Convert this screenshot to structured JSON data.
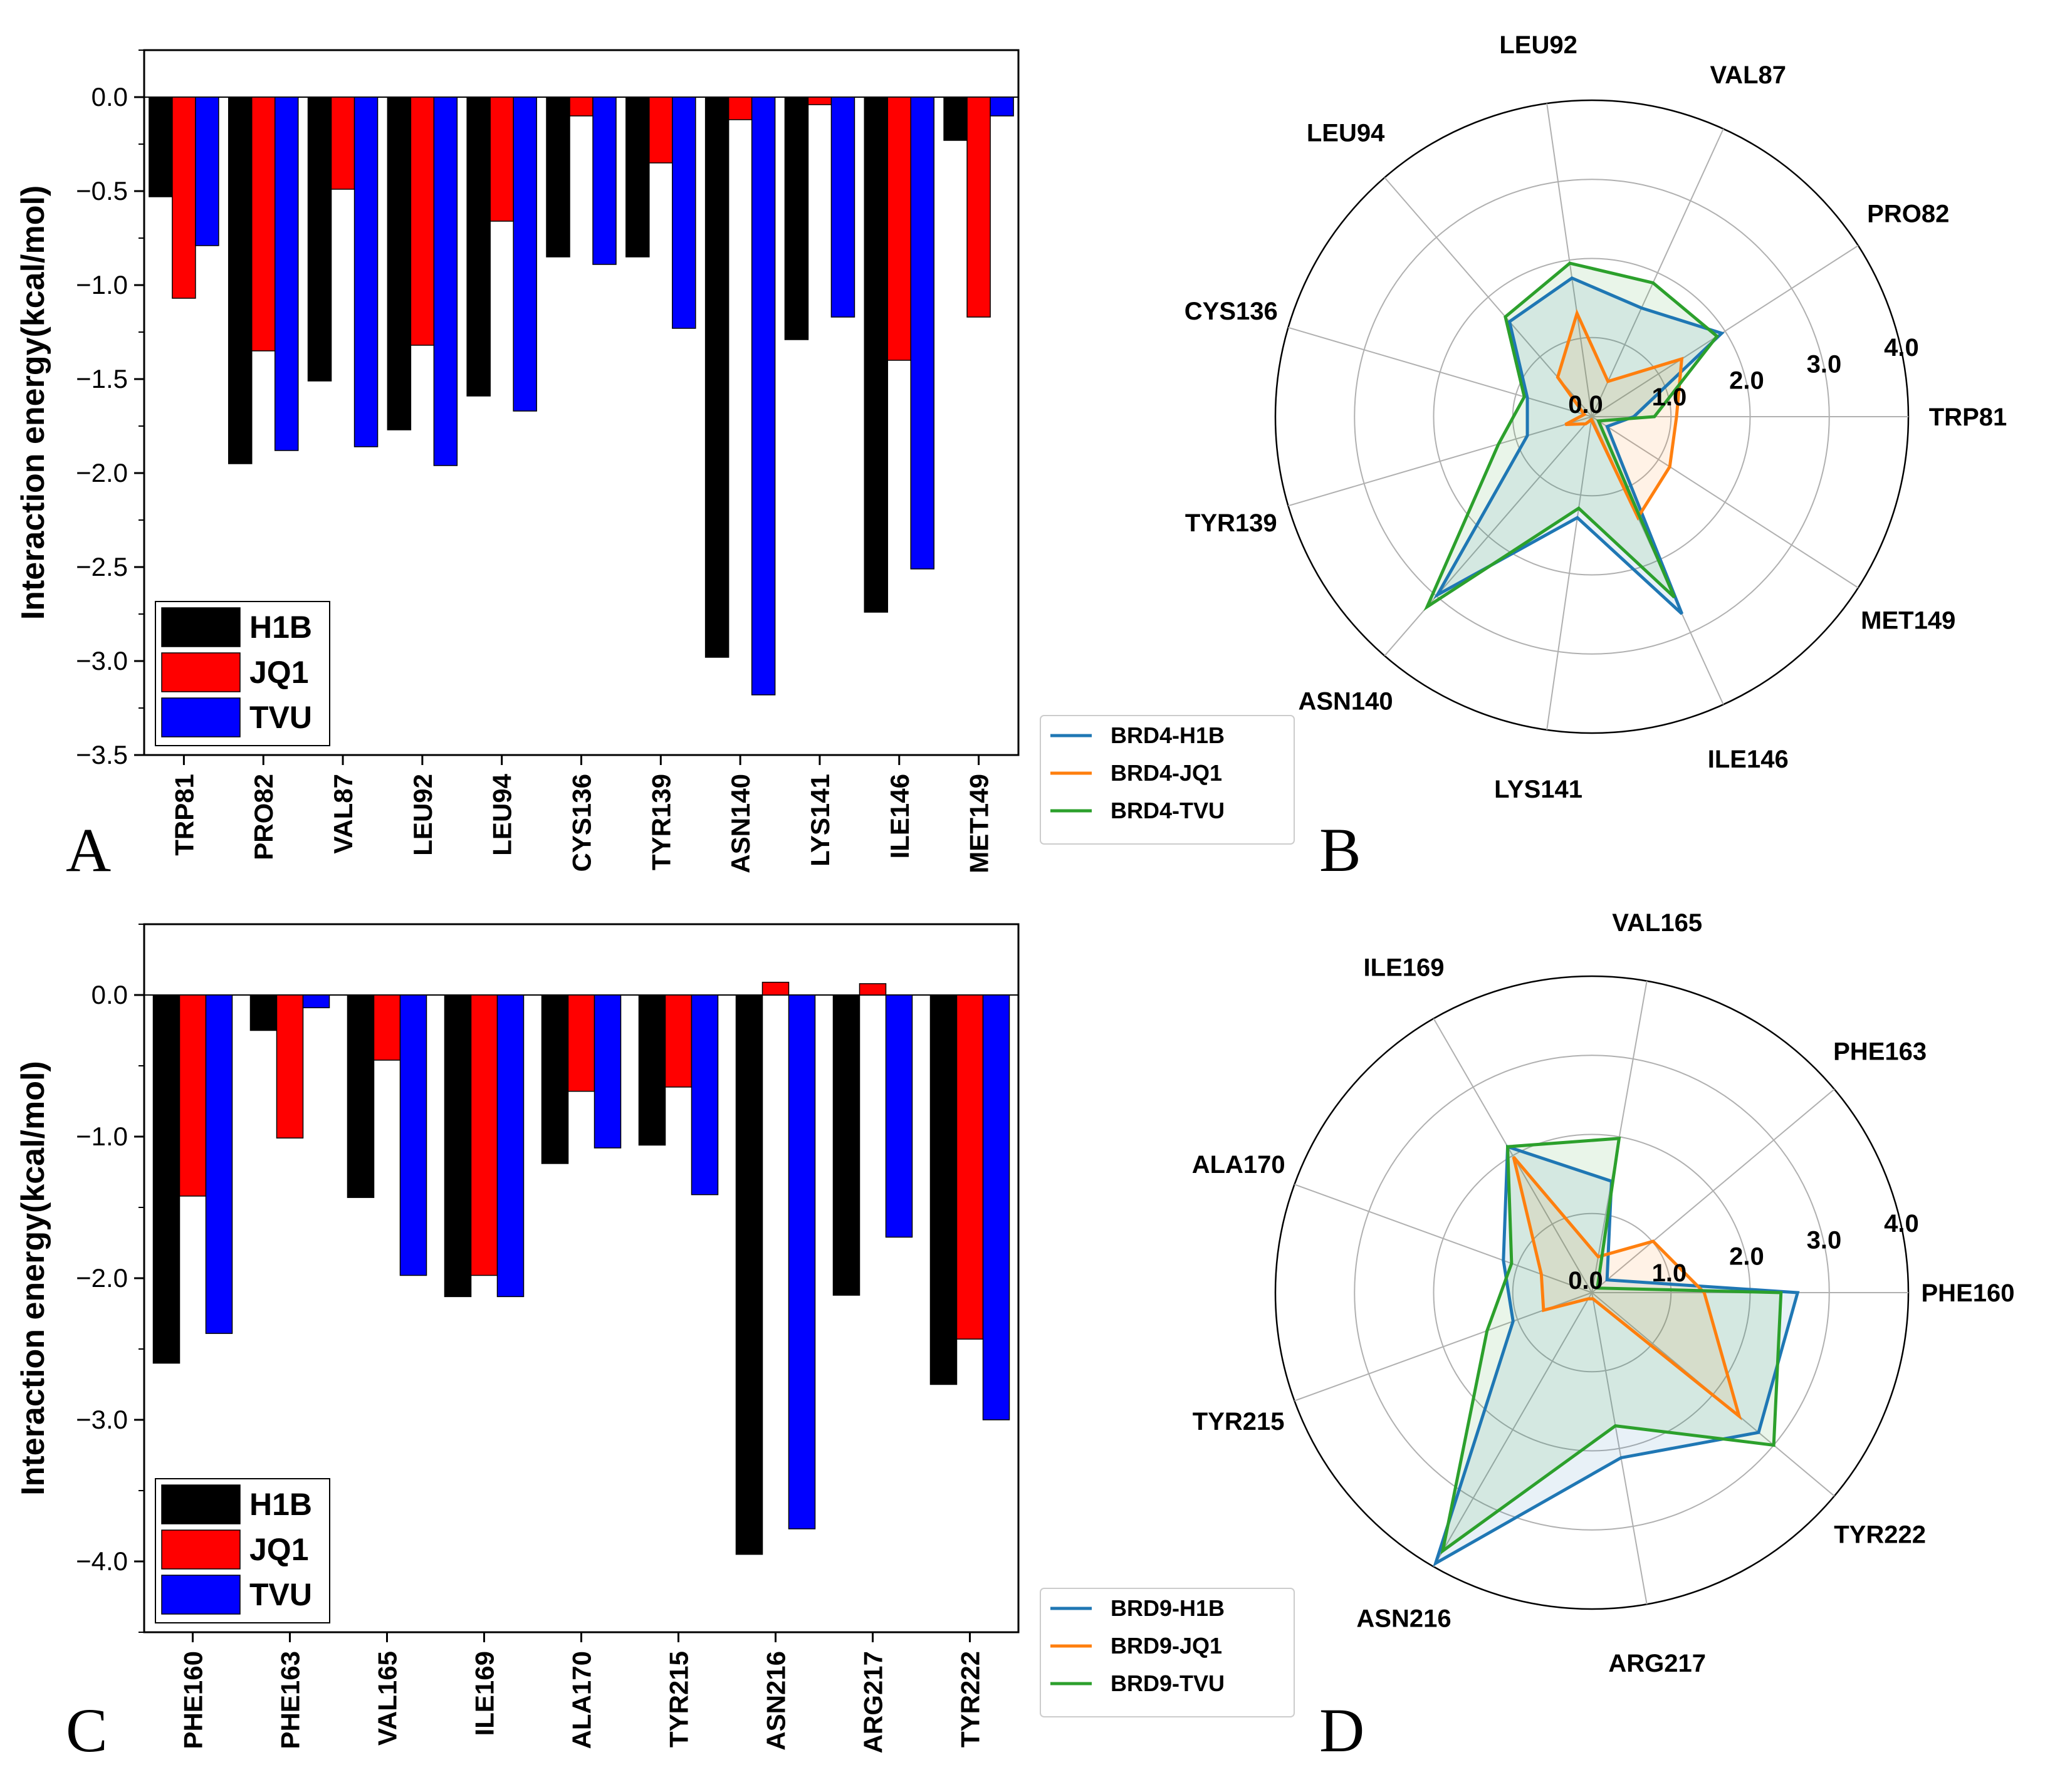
{
  "chart_data": [
    {
      "panel": "A",
      "type": "bar",
      "ylabel": "Interaction energy(kcal/mol)",
      "ylim": [
        -3.5,
        0.25
      ],
      "yticks": [
        "0.0",
        "−0.5",
        "−1.0",
        "−1.5",
        "−2.0",
        "−2.5",
        "−3.0",
        "−3.5"
      ],
      "categories": [
        "TRP81",
        "PRO82",
        "VAL87",
        "LEU92",
        "LEU94",
        "CYS136",
        "TYR139",
        "ASN140",
        "LYS141",
        "ILE146",
        "MET149"
      ],
      "series": [
        {
          "name": "H1B",
          "color": "#000000",
          "values": [
            -0.53,
            -1.95,
            -1.51,
            -1.77,
            -1.59,
            -0.85,
            -0.85,
            -2.98,
            -1.29,
            -2.74,
            -0.23
          ]
        },
        {
          "name": "JQ1",
          "color": "#ff0000",
          "values": [
            -1.07,
            -1.35,
            -0.49,
            -1.32,
            -0.66,
            -0.1,
            -0.35,
            -0.12,
            -0.04,
            -1.4,
            -1.17
          ]
        },
        {
          "name": "TVU",
          "color": "#0000ff",
          "values": [
            -0.79,
            -1.88,
            -1.86,
            -1.96,
            -1.67,
            -0.89,
            -1.23,
            -3.18,
            -1.17,
            -2.51,
            -0.1
          ]
        }
      ],
      "legend": "bottom-left",
      "grid": false
    },
    {
      "panel": "B",
      "type": "radar",
      "rlim": [
        0,
        4
      ],
      "rticks": [
        "0.0",
        "1.0",
        "2.0",
        "3.0",
        "4.0"
      ],
      "categories": [
        "TRP81",
        "PRO82",
        "VAL87",
        "LEU92",
        "LEU94",
        "CYS136",
        "TYR139",
        "ASN140",
        "LYS141",
        "ILE146",
        "MET149"
      ],
      "series": [
        {
          "name": "BRD4-H1B",
          "color": "#1f77b4",
          "values": [
            0.53,
            1.95,
            1.51,
            1.77,
            1.59,
            0.85,
            0.85,
            2.98,
            1.29,
            2.74,
            0.23
          ]
        },
        {
          "name": "BRD4-JQ1",
          "color": "#ff7f0e",
          "values": [
            1.07,
            1.35,
            0.49,
            1.32,
            0.66,
            0.1,
            0.35,
            0.12,
            0.04,
            1.4,
            1.17
          ]
        },
        {
          "name": "BRD4-TVU",
          "color": "#2ca02c",
          "values": [
            0.79,
            1.88,
            1.86,
            1.96,
            1.67,
            0.89,
            1.23,
            3.18,
            1.17,
            2.51,
            0.1
          ]
        }
      ],
      "grid": true,
      "legend": "bottom-left"
    },
    {
      "panel": "C",
      "type": "bar",
      "ylabel": "Interaction energy(kcal/mol)",
      "ylim": [
        -4.5,
        0.5
      ],
      "yticks": [
        "0.0",
        "−1.0",
        "−2.0",
        "−3.0",
        "−4.0"
      ],
      "categories": [
        "PHE160",
        "PHE163",
        "VAL165",
        "ILE169",
        "ALA170",
        "TYR215",
        "ASN216",
        "ARG217",
        "TYR222"
      ],
      "series": [
        {
          "name": "H1B",
          "color": "#000000",
          "values": [
            -2.6,
            -0.25,
            -1.43,
            -2.13,
            -1.19,
            -1.06,
            -3.95,
            -2.12,
            -2.75
          ]
        },
        {
          "name": "JQ1",
          "color": "#ff0000",
          "values": [
            -1.42,
            -1.01,
            -0.46,
            -1.98,
            -0.68,
            -0.65,
            0.09,
            0.08,
            -2.43
          ]
        },
        {
          "name": "TVU",
          "color": "#0000ff",
          "values": [
            -2.39,
            -0.09,
            -1.98,
            -2.13,
            -1.08,
            -1.41,
            -3.77,
            -1.71,
            -3.0
          ]
        }
      ],
      "legend": "bottom-left",
      "grid": false
    },
    {
      "panel": "D",
      "type": "radar",
      "rlim": [
        0,
        4
      ],
      "rticks": [
        "0.0",
        "1.0",
        "2.0",
        "3.0",
        "4.0"
      ],
      "categories": [
        "PHE160",
        "PHE163",
        "VAL165",
        "ILE169",
        "ALA170",
        "TYR215",
        "ASN216",
        "ARG217",
        "TYR222"
      ],
      "series": [
        {
          "name": "BRD9-H1B",
          "color": "#1f77b4",
          "values": [
            2.6,
            0.25,
            1.43,
            2.13,
            1.19,
            1.06,
            3.95,
            2.12,
            2.75
          ]
        },
        {
          "name": "BRD9-JQ1",
          "color": "#ff7f0e",
          "values": [
            1.42,
            1.01,
            0.46,
            1.98,
            0.68,
            0.65,
            0.09,
            0.08,
            2.43
          ]
        },
        {
          "name": "BRD9-TVU",
          "color": "#2ca02c",
          "values": [
            2.39,
            0.09,
            1.98,
            2.13,
            1.08,
            1.41,
            3.77,
            1.71,
            3.0
          ]
        }
      ],
      "grid": true,
      "legend": "bottom-left"
    }
  ]
}
